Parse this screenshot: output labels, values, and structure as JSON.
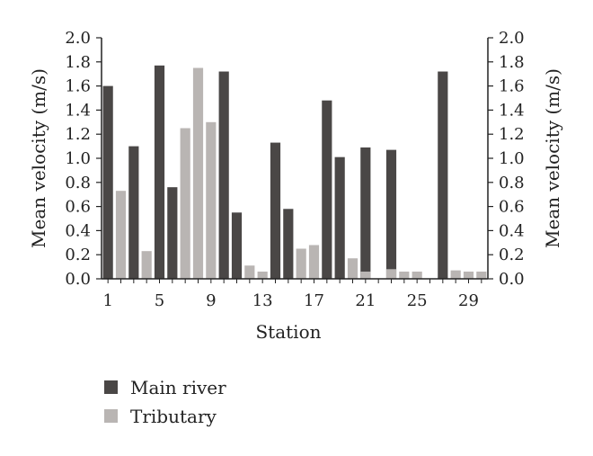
{
  "chart_data": {
    "type": "bar",
    "xlabel": "Station",
    "ylabel_left": "Mean velocity (m/s)",
    "ylabel_right": "Mean velocity (m/s)",
    "ylim": [
      0,
      2.0
    ],
    "yticks": [
      "0.0",
      "0.2",
      "0.4",
      "0.6",
      "0.8",
      "1.0",
      "1.2",
      "1.4",
      "1.6",
      "1.8",
      "2.0"
    ],
    "xticks": [
      "1",
      "5",
      "9",
      "13",
      "17",
      "21",
      "25",
      "29"
    ],
    "grid": false,
    "legend_position": "bottom-left",
    "series": [
      {
        "name": "Main river",
        "color": "#4a4746",
        "bars": [
          {
            "station": 1,
            "value": 1.6
          },
          {
            "station": 3,
            "value": 1.1
          },
          {
            "station": 5,
            "value": 1.77
          },
          {
            "station": 6,
            "value": 0.76
          },
          {
            "station": 10,
            "value": 1.72
          },
          {
            "station": 11,
            "value": 0.55
          },
          {
            "station": 14,
            "value": 1.13
          },
          {
            "station": 15,
            "value": 0.58
          },
          {
            "station": 18,
            "value": 1.48
          },
          {
            "station": 19,
            "value": 1.01
          },
          {
            "station": 21,
            "value": 1.09
          },
          {
            "station": 23,
            "value": 1.07
          },
          {
            "station": 27,
            "value": 1.72
          }
        ]
      },
      {
        "name": "Tributary",
        "color": "#b9b5b3",
        "bars": [
          {
            "station": 2,
            "value": 0.73
          },
          {
            "station": 4,
            "value": 0.23
          },
          {
            "station": 7,
            "value": 1.25
          },
          {
            "station": 8,
            "value": 1.75
          },
          {
            "station": 9,
            "value": 1.3
          },
          {
            "station": 12,
            "value": 0.11
          },
          {
            "station": 13,
            "value": 0.06
          },
          {
            "station": 16,
            "value": 0.25
          },
          {
            "station": 17,
            "value": 0.28
          },
          {
            "station": 20,
            "value": 0.17
          },
          {
            "station": 21,
            "value": 0.06
          },
          {
            "station": 23,
            "value": 0.08
          },
          {
            "station": 24,
            "value": 0.06
          },
          {
            "station": 25,
            "value": 0.06
          },
          {
            "station": 28,
            "value": 0.07
          },
          {
            "station": 29,
            "value": 0.06
          },
          {
            "station": 30,
            "value": 0.06
          }
        ]
      }
    ]
  }
}
